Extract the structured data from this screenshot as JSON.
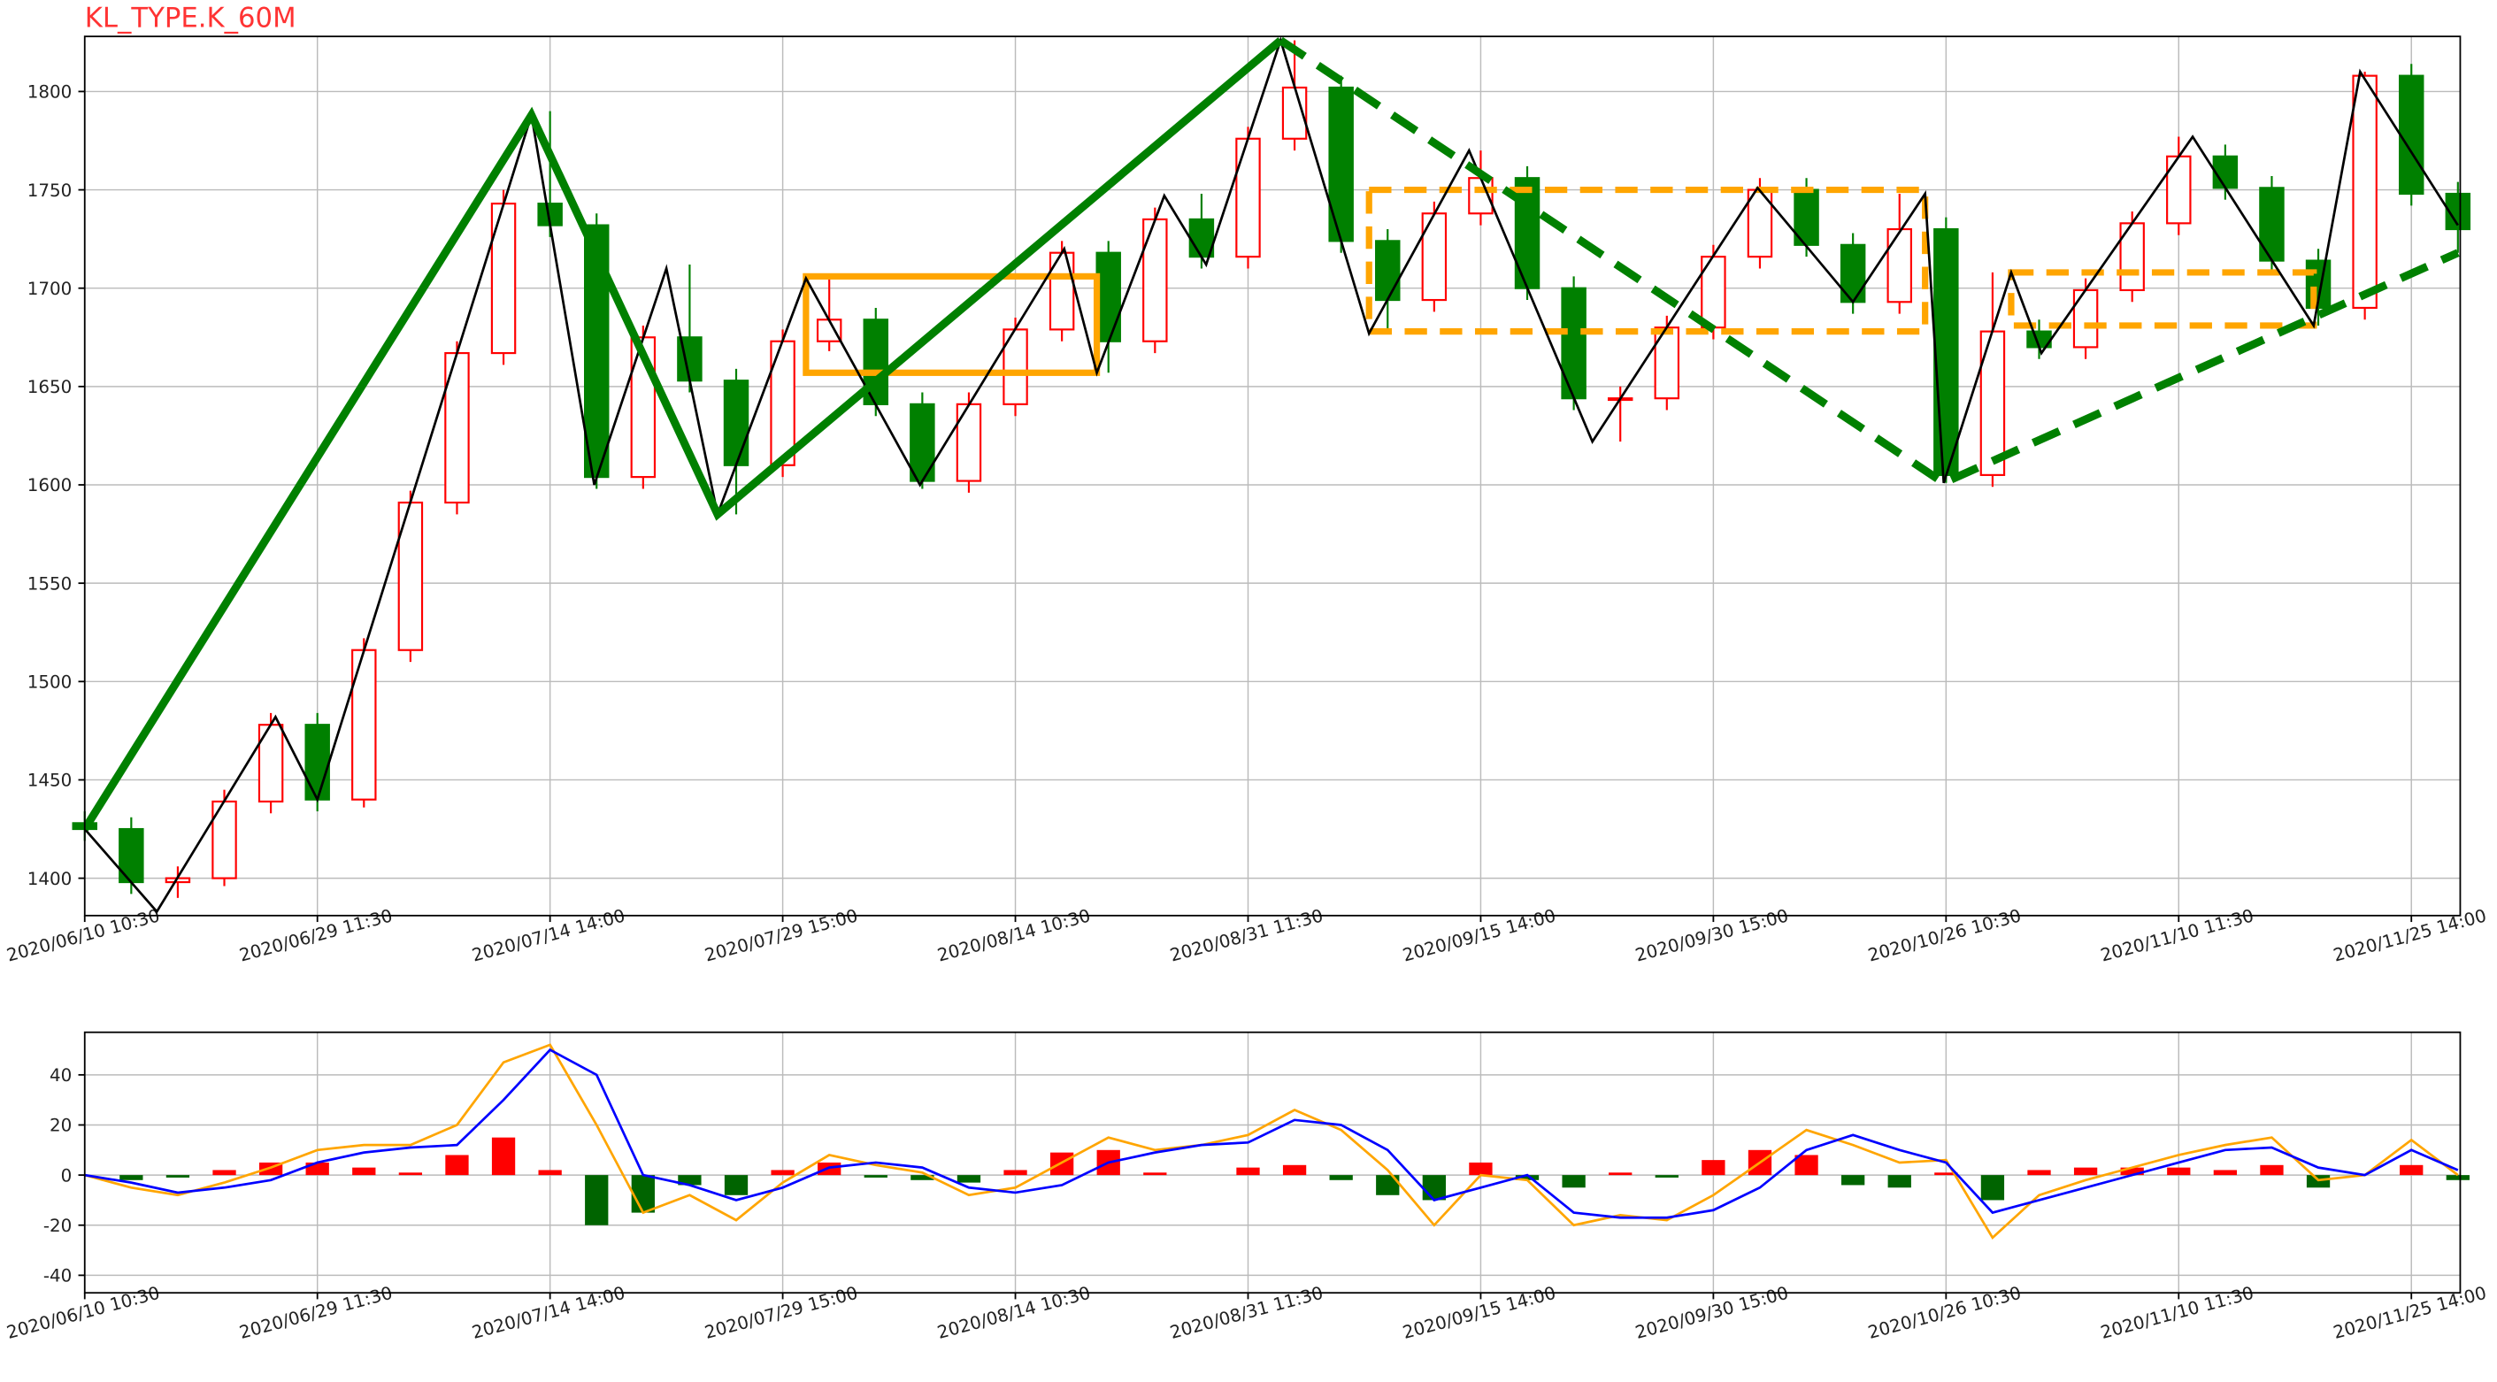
{
  "chart_data": [
    {
      "type": "candlestick",
      "title": "KL_TYPE.K_60M",
      "x": [
        0,
        20,
        40,
        60,
        80,
        100,
        120,
        140,
        160,
        180,
        200,
        220,
        240,
        260,
        280,
        300,
        320,
        340,
        360,
        380,
        400,
        420,
        440,
        460,
        480,
        500,
        520,
        540,
        560,
        580,
        600,
        620,
        640,
        660,
        680,
        700,
        720,
        740,
        760,
        780,
        800,
        820,
        840,
        860,
        880,
        900,
        920,
        940,
        960,
        980,
        1000,
        1020
      ],
      "open": [
        1428,
        1425,
        1398,
        1400,
        1439,
        1478,
        1440,
        1516,
        1591,
        1667,
        1743,
        1732,
        1604,
        1675,
        1653,
        1610,
        1673,
        1684,
        1641,
        1602,
        1641,
        1679,
        1718,
        1673,
        1735,
        1716,
        1776,
        1802,
        1724,
        1694,
        1738,
        1756,
        1700,
        1644,
        1644,
        1680,
        1716,
        1750,
        1722,
        1693,
        1730,
        1605,
        1678,
        1670,
        1699,
        1733,
        1767,
        1751,
        1714,
        1690,
        1808,
        1748
      ],
      "high": [
        1434,
        1431,
        1406,
        1445,
        1484,
        1484,
        1522,
        1597,
        1673,
        1750,
        1790,
        1738,
        1681,
        1712,
        1659,
        1679,
        1706,
        1690,
        1647,
        1647,
        1685,
        1724,
        1724,
        1741,
        1748,
        1782,
        1826,
        1808,
        1730,
        1744,
        1770,
        1762,
        1706,
        1650,
        1686,
        1722,
        1756,
        1756,
        1728,
        1748,
        1736,
        1708,
        1684,
        1705,
        1739,
        1777,
        1773,
        1757,
        1720,
        1810,
        1814,
        1754
      ],
      "low": [
        1419,
        1392,
        1390,
        1396,
        1433,
        1434,
        1436,
        1510,
        1585,
        1661,
        1726,
        1598,
        1598,
        1647,
        1585,
        1604,
        1668,
        1635,
        1598,
        1596,
        1635,
        1673,
        1657,
        1667,
        1710,
        1710,
        1770,
        1718,
        1677,
        1688,
        1732,
        1694,
        1638,
        1622,
        1638,
        1674,
        1710,
        1716,
        1687,
        1687,
        1601,
        1599,
        1664,
        1664,
        1693,
        1727,
        1745,
        1708,
        1681,
        1684,
        1742,
        1718
      ],
      "close": [
        1425,
        1398,
        1400,
        1439,
        1478,
        1440,
        1516,
        1591,
        1667,
        1743,
        1732,
        1604,
        1675,
        1653,
        1610,
        1673,
        1684,
        1641,
        1602,
        1641,
        1679,
        1718,
        1673,
        1735,
        1716,
        1776,
        1802,
        1724,
        1694,
        1738,
        1756,
        1700,
        1644,
        1644,
        1680,
        1716,
        1750,
        1722,
        1693,
        1730,
        1605,
        1678,
        1670,
        1699,
        1733,
        1767,
        1751,
        1714,
        1690,
        1808,
        1748,
        1730
      ],
      "up_color": "#ff0000",
      "down_color": "#008000",
      "bi": {
        "color": "#000000",
        "x": [
          0,
          31,
          82,
          100,
          192,
          219,
          250,
          272,
          310,
          359,
          421,
          435,
          464,
          482,
          514,
          552,
          595,
          648,
          719,
          760,
          791,
          799,
          828,
          841,
          906,
          958,
          978,
          1020
        ],
        "values": [
          1425,
          1383,
          1482,
          1440,
          1788,
          1600,
          1710,
          1585,
          1705,
          1600,
          1720,
          1657,
          1747,
          1712,
          1826,
          1677,
          1770,
          1622,
          1751,
          1693,
          1748,
          1601,
          1708,
          1667,
          1777,
          1681,
          1810,
          1732
        ]
      },
      "segments": [
        {
          "color": "#008000",
          "dashed": false,
          "x": [
            0,
            192,
            272,
            514
          ],
          "values": [
            1425,
            1788,
            1585,
            1826
          ]
        },
        {
          "color": "#008000",
          "dashed": true,
          "x": [
            514,
            799,
            1020
          ],
          "values": [
            1826,
            1601,
            1718
          ]
        }
      ],
      "zs": [
        {
          "color": "#ffa500",
          "dashed": false,
          "x": [
            310,
            435
          ],
          "y": [
            1657,
            1706
          ]
        },
        {
          "color": "#ffa500",
          "dashed": true,
          "x": [
            552,
            791
          ],
          "y": [
            1678,
            1750
          ]
        },
        {
          "color": "#ffa500",
          "dashed": true,
          "x": [
            828,
            958
          ],
          "y": [
            1681,
            1708
          ]
        }
      ],
      "xlim": [
        0,
        1021
      ],
      "ylim": [
        1381,
        1828
      ],
      "xticks": [
        {
          "value": 0,
          "label": "2020/06/10 10:30"
        },
        {
          "value": 100,
          "label": "2020/06/29 11:30"
        },
        {
          "value": 200,
          "label": "2020/07/14 14:00"
        },
        {
          "value": 300,
          "label": "2020/07/29 15:00"
        },
        {
          "value": 400,
          "label": "2020/08/14 10:30"
        },
        {
          "value": 500,
          "label": "2020/08/31 11:30"
        },
        {
          "value": 600,
          "label": "2020/09/15 14:00"
        },
        {
          "value": 700,
          "label": "2020/09/30 15:00"
        },
        {
          "value": 800,
          "label": "2020/10/26 10:30"
        },
        {
          "value": 900,
          "label": "2020/11/10 11:30"
        },
        {
          "value": 1000,
          "label": "2020/11/25 14:00"
        }
      ],
      "yticks": [
        1400,
        1450,
        1500,
        1550,
        1600,
        1650,
        1700,
        1750,
        1800
      ],
      "grid": true
    },
    {
      "type": "macd",
      "x": [
        0,
        20,
        40,
        60,
        80,
        100,
        120,
        140,
        160,
        180,
        200,
        220,
        240,
        260,
        280,
        300,
        320,
        340,
        360,
        380,
        400,
        420,
        440,
        460,
        480,
        500,
        520,
        540,
        560,
        580,
        600,
        620,
        640,
        660,
        680,
        700,
        720,
        740,
        760,
        780,
        800,
        820,
        840,
        860,
        880,
        900,
        920,
        940,
        960,
        980,
        1000,
        1020
      ],
      "series": [
        {
          "color": "#ffa500",
          "values": [
            0,
            -5,
            -8,
            -3,
            3,
            10,
            12,
            12,
            20,
            45,
            52,
            20,
            -15,
            -8,
            -18,
            -3,
            8,
            4,
            1,
            -8,
            -5,
            5,
            15,
            10,
            12,
            16,
            26,
            18,
            2,
            -20,
            0,
            -2,
            -20,
            -16,
            -18,
            -8,
            5,
            18,
            12,
            5,
            6,
            -25,
            -8,
            -2,
            3,
            8,
            12,
            15,
            -2,
            0,
            14,
            0
          ]
        },
        {
          "color": "#0000ff",
          "values": [
            0,
            -3,
            -7,
            -5,
            -2,
            5,
            9,
            11,
            12,
            30,
            50,
            40,
            0,
            -4,
            -10,
            -5,
            3,
            5,
            3,
            -5,
            -7,
            -4,
            5,
            9,
            12,
            13,
            22,
            20,
            10,
            -10,
            -5,
            0,
            -15,
            -17,
            -17,
            -14,
            -5,
            10,
            16,
            10,
            5,
            -15,
            -10,
            -5,
            0,
            5,
            10,
            11,
            3,
            0,
            10,
            2
          ]
        }
      ],
      "bars": [
        0,
        -2,
        -1,
        2,
        5,
        5,
        3,
        1,
        8,
        15,
        2,
        -20,
        -15,
        -4,
        -8,
        2,
        5,
        -1,
        -2,
        -3,
        2,
        9,
        10,
        1,
        0,
        3,
        4,
        -2,
        -8,
        -10,
        5,
        -2,
        -5,
        1,
        -1,
        6,
        10,
        8,
        -4,
        -5,
        1,
        -10,
        2,
        3,
        3,
        3,
        2,
        4,
        -5,
        0,
        4,
        -2
      ],
      "pos_color": "#ff0000",
      "neg_color": "#006400",
      "xlim": [
        0,
        1021
      ],
      "ylim": [
        -47,
        57
      ],
      "xticks": [
        {
          "value": 0,
          "label": "2020/06/10 10:30"
        },
        {
          "value": 100,
          "label": "2020/06/29 11:30"
        },
        {
          "value": 200,
          "label": "2020/07/14 14:00"
        },
        {
          "value": 300,
          "label": "2020/07/29 15:00"
        },
        {
          "value": 400,
          "label": "2020/08/14 10:30"
        },
        {
          "value": 500,
          "label": "2020/08/31 11:30"
        },
        {
          "value": 600,
          "label": "2020/09/15 14:00"
        },
        {
          "value": 700,
          "label": "2020/09/30 15:00"
        },
        {
          "value": 800,
          "label": "2020/10/26 10:30"
        },
        {
          "value": 900,
          "label": "2020/11/10 11:30"
        },
        {
          "value": 1000,
          "label": "2020/11/25 14:00"
        }
      ],
      "yticks": [
        -40,
        -20,
        0,
        20,
        40
      ],
      "grid": true
    }
  ]
}
